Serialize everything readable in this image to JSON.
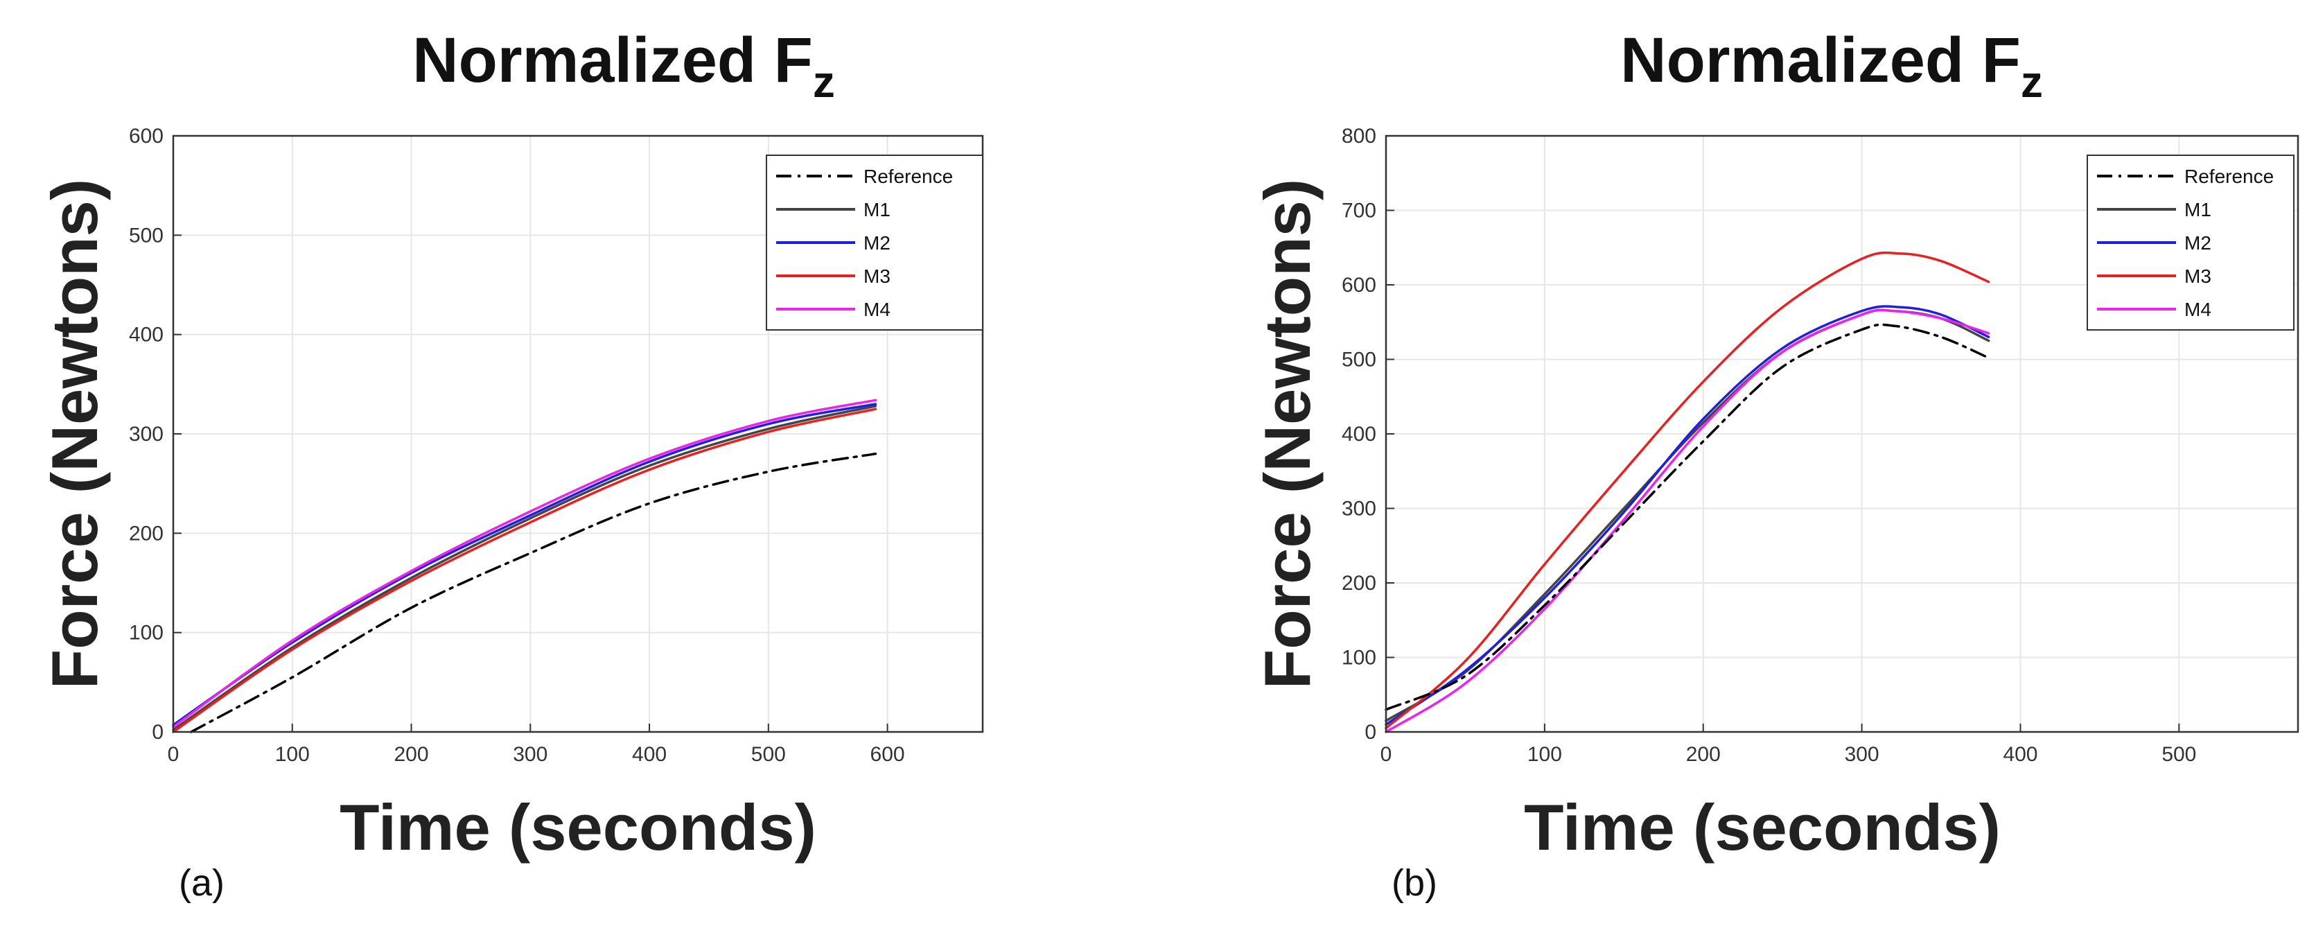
{
  "chart_data": [
    {
      "type": "line",
      "panel_label": "(a)",
      "title": "Normalized F",
      "title_subscript": "z",
      "xlabel": "Time (seconds)",
      "ylabel": "Force (Newtons)",
      "xlim": [
        0,
        680
      ],
      "ylim": [
        0,
        600
      ],
      "xticks": [
        0,
        100,
        200,
        300,
        400,
        500,
        600
      ],
      "yticks": [
        0,
        100,
        200,
        300,
        400,
        500,
        600
      ],
      "grid": true,
      "legend_position": "top-right",
      "series": [
        {
          "name": "Reference",
          "color": "#000000",
          "style": "dashdot",
          "points": [
            [
              15,
              0
            ],
            [
              100,
              55
            ],
            [
              200,
              125
            ],
            [
              300,
              180
            ],
            [
              400,
              230
            ],
            [
              500,
              262
            ],
            [
              590,
              280
            ]
          ]
        },
        {
          "name": "M1",
          "color": "#444444",
          "style": "solid",
          "points": [
            [
              0,
              2
            ],
            [
              100,
              85
            ],
            [
              200,
              155
            ],
            [
              300,
              215
            ],
            [
              400,
              268
            ],
            [
              500,
              305
            ],
            [
              590,
              328
            ]
          ]
        },
        {
          "name": "M2",
          "color": "#1f1fe0",
          "style": "solid",
          "points": [
            [
              0,
              7
            ],
            [
              100,
              90
            ],
            [
              200,
              160
            ],
            [
              300,
              218
            ],
            [
              400,
              272
            ],
            [
              500,
              310
            ],
            [
              590,
              330
            ]
          ]
        },
        {
          "name": "M3",
          "color": "#e82020",
          "style": "solid",
          "points": [
            [
              0,
              0
            ],
            [
              100,
              83
            ],
            [
              200,
              152
            ],
            [
              300,
              211
            ],
            [
              400,
              264
            ],
            [
              500,
              302
            ],
            [
              590,
              325
            ]
          ]
        },
        {
          "name": "M4",
          "color": "#ee22ee",
          "style": "solid",
          "points": [
            [
              0,
              5
            ],
            [
              100,
              92
            ],
            [
              200,
              162
            ],
            [
              300,
              222
            ],
            [
              400,
              275
            ],
            [
              500,
              313
            ],
            [
              590,
              334
            ]
          ]
        }
      ]
    },
    {
      "type": "line",
      "panel_label": "(b)",
      "title": "Normalized F",
      "title_subscript": "z",
      "xlabel": "Time (seconds)",
      "ylabel": "Force (Newtons)",
      "xlim": [
        0,
        575
      ],
      "ylim": [
        0,
        800
      ],
      "xticks": [
        0,
        100,
        200,
        300,
        400,
        500
      ],
      "yticks": [
        0,
        100,
        200,
        300,
        400,
        500,
        600,
        700,
        800
      ],
      "grid": true,
      "legend_position": "top-right",
      "series": [
        {
          "name": "Reference",
          "color": "#000000",
          "style": "dashdot",
          "points": [
            [
              0,
              30
            ],
            [
              50,
              75
            ],
            [
              100,
              170
            ],
            [
              150,
              280
            ],
            [
              200,
              390
            ],
            [
              250,
              490
            ],
            [
              300,
              540
            ],
            [
              320,
              545
            ],
            [
              350,
              530
            ],
            [
              380,
              502
            ]
          ]
        },
        {
          "name": "M1",
          "color": "#444444",
          "style": "solid",
          "points": [
            [
              0,
              15
            ],
            [
              50,
              80
            ],
            [
              100,
              185
            ],
            [
              150,
              300
            ],
            [
              200,
              415
            ],
            [
              250,
              510
            ],
            [
              300,
              560
            ],
            [
              320,
              565
            ],
            [
              350,
              555
            ],
            [
              380,
              525
            ]
          ]
        },
        {
          "name": "M2",
          "color": "#1f1fe0",
          "style": "solid",
          "points": [
            [
              0,
              10
            ],
            [
              50,
              82
            ],
            [
              100,
              180
            ],
            [
              150,
              295
            ],
            [
              200,
              420
            ],
            [
              250,
              515
            ],
            [
              300,
              565
            ],
            [
              325,
              570
            ],
            [
              350,
              560
            ],
            [
              380,
              530
            ]
          ]
        },
        {
          "name": "M3",
          "color": "#e82020",
          "style": "solid",
          "points": [
            [
              0,
              5
            ],
            [
              50,
              95
            ],
            [
              100,
              225
            ],
            [
              150,
              350
            ],
            [
              200,
              470
            ],
            [
              250,
              570
            ],
            [
              300,
              635
            ],
            [
              325,
              642
            ],
            [
              350,
              632
            ],
            [
              380,
              604
            ]
          ]
        },
        {
          "name": "M4",
          "color": "#ee22ee",
          "style": "solid",
          "points": [
            [
              0,
              0
            ],
            [
              50,
              65
            ],
            [
              100,
              165
            ],
            [
              150,
              285
            ],
            [
              200,
              410
            ],
            [
              250,
              510
            ],
            [
              300,
              560
            ],
            [
              320,
              565
            ],
            [
              350,
              555
            ],
            [
              380,
              535
            ]
          ]
        }
      ]
    }
  ]
}
